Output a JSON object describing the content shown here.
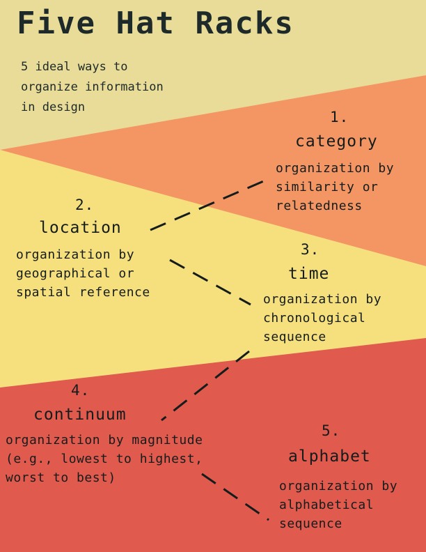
{
  "title": "Five Hat Racks",
  "subtitle": "5 ideal ways to\norganize information\nin design",
  "colors": {
    "background_top": "#e8dc98",
    "orange_band": "#f49664",
    "yellow_band": "#f6e07e",
    "red_band": "#e05a4e",
    "text": "#141c1c",
    "connector": "#141c1c"
  },
  "items": [
    {
      "number": "1.",
      "name": "category",
      "description": "organization by\nsimilarity or\nrelatedness"
    },
    {
      "number": "2.",
      "name": "location",
      "description": "organization by\ngeographical or\nspatial reference"
    },
    {
      "number": "3.",
      "name": "time",
      "description": "organization by\nchronological\nsequence"
    },
    {
      "number": "4.",
      "name": "continuum",
      "description": "organization by magnitude\n(e.g., lowest to highest,\nworst to best)"
    },
    {
      "number": "5.",
      "name": "alphabet",
      "description": "organization by\nalphabetical\nsequence"
    }
  ]
}
